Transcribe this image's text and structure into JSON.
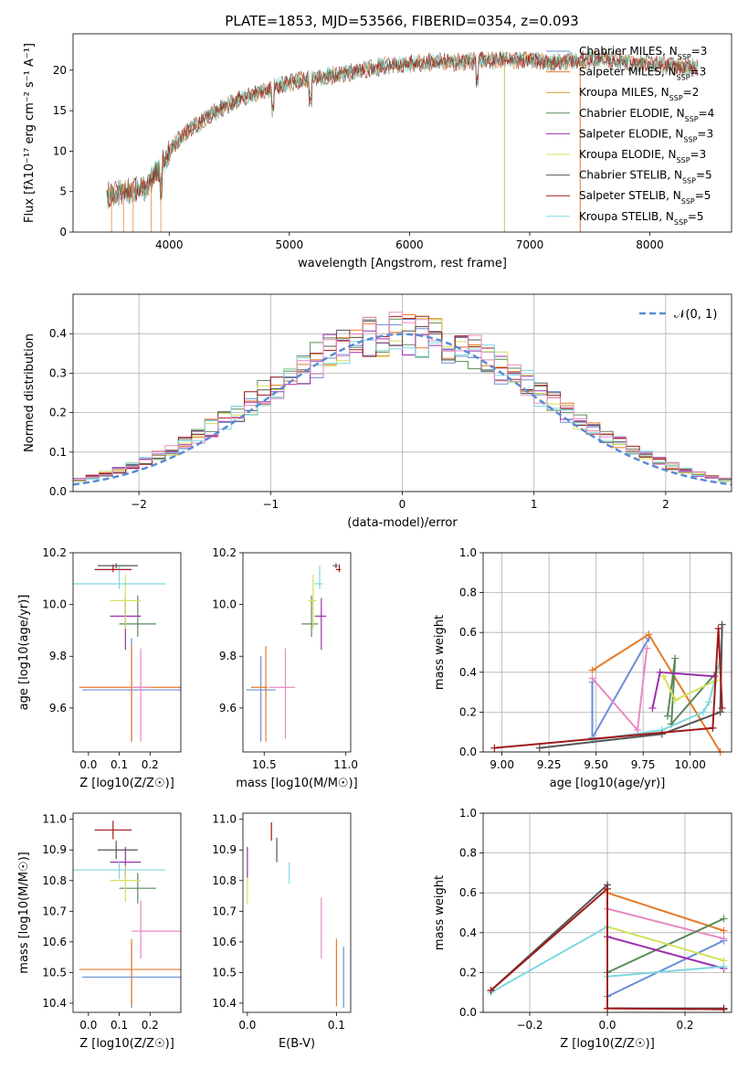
{
  "figure": {
    "title": "PLATE=1853, MJD=53566, FIBERID=0354, z=0.093",
    "model_colors": [
      "#6a8fd6",
      "#e57a2a",
      "#d99a2b",
      "#5a8a5a",
      "#9b2fae",
      "#d4e05a",
      "#555555",
      "#a01a1a",
      "#7fd8e0"
    ],
    "pink": "#e78ac3"
  },
  "chart_data": [
    {
      "id": "spectrum",
      "type": "line",
      "title": "PLATE=1853, MJD=53566, FIBERID=0354, z=0.093",
      "xlabel": "wavelength [Angstrom, rest frame]",
      "ylabel": "Flux [fλ10⁻¹⁷ erg cm⁻² s⁻¹ A⁻¹]",
      "xlim": [
        3200,
        8680
      ],
      "ylim": [
        0,
        24.5
      ],
      "xticks": [
        4000,
        5000,
        6000,
        7000,
        8000
      ],
      "yticks": [
        0,
        5,
        10,
        15,
        20
      ],
      "grid": false,
      "legend_position": "right",
      "legend": [
        "Chabrier MILES, N_SSP=3",
        "Salpeter MILES, N_SSP=3",
        "Kroupa MILES, N_SSP=2",
        "Chabrier ELODIE, N_SSP=4",
        "Salpeter ELODIE, N_SSP=3",
        "Kroupa ELODIE, N_SSP=3",
        "Chabrier STELIB, N_SSP=5",
        "Salpeter STELIB, N_SSP=5",
        "Kroupa STELIB, N_SSP=5"
      ],
      "continuum": {
        "x": [
          3480,
          3600,
          3800,
          3950,
          4050,
          4200,
          4400,
          4600,
          4800,
          5000,
          5200,
          5400,
          5600,
          5800,
          6000,
          6200,
          6400,
          6600,
          6800,
          7000,
          7200,
          7400,
          7600,
          7800,
          8000,
          8200,
          8400
        ],
        "y": [
          4.5,
          4.8,
          5.5,
          8.5,
          11.0,
          13.0,
          15.0,
          16.5,
          17.5,
          18.5,
          19.0,
          19.5,
          20.0,
          20.5,
          20.8,
          21.0,
          21.0,
          21.2,
          21.3,
          21.3,
          21.0,
          21.2,
          21.5,
          21.0,
          20.8,
          20.5,
          20.3
        ]
      },
      "spikes": [
        {
          "x": 6790,
          "ymin": 0,
          "ymax": 20.5
        },
        {
          "x": 7420,
          "ymin": 0,
          "ymax": 21.5
        }
      ]
    },
    {
      "id": "residuals",
      "type": "step",
      "xlabel": "(data-model)/error",
      "ylabel": "Normed distribution",
      "xlim": [
        -2.5,
        2.5
      ],
      "ylim": [
        0,
        0.5
      ],
      "xticks": [
        -2,
        -1,
        0,
        1,
        2
      ],
      "yticks": [
        0.0,
        0.1,
        0.2,
        0.3,
        0.4
      ],
      "grid": true,
      "legend": [
        "𝒩(0, 1)"
      ],
      "legend_position": "top-right",
      "bin_width": 0.1
    },
    {
      "id": "z-age",
      "type": "errorbar",
      "xlabel": "Z [log10(Z/Z☉)]",
      "ylabel": "age  [log10(age/yr)]",
      "xlim": [
        -0.05,
        0.3
      ],
      "ylim": [
        9.43,
        10.2
      ],
      "xticks": [
        0.0,
        0.1,
        0.2
      ],
      "yticks": [
        9.6,
        9.8,
        10.0,
        10.2
      ],
      "grid": false,
      "points": [
        {
          "x": 0.14,
          "y": 9.67,
          "xerr": [
            0.16,
            0.16
          ],
          "yerr": [
            0.2,
            0.2
          ],
          "c": 0
        },
        {
          "x": 0.14,
          "y": 9.68,
          "xerr": [
            0.17,
            0.16
          ],
          "yerr": [
            0.21,
            0.16
          ],
          "c": 1
        },
        {
          "x": 0.17,
          "y": 9.68,
          "xerr": [
            0.03,
            0.03
          ],
          "yerr": [
            0.21,
            0.15
          ],
          "c": "pink"
        },
        {
          "x": 0.16,
          "y": 9.925,
          "xerr": [
            0.06,
            0.06
          ],
          "yerr": [
            0.05,
            0.11
          ],
          "c": 3
        },
        {
          "x": 0.12,
          "y": 9.955,
          "xerr": [
            0.05,
            0.05
          ],
          "yerr": [
            0.13,
            0.07
          ],
          "c": 4
        },
        {
          "x": 0.12,
          "y": 10.015,
          "xerr": [
            0.05,
            0.05
          ],
          "yerr": [
            0.11,
            0.1
          ],
          "c": 5
        },
        {
          "x": 0.1,
          "y": 10.08,
          "xerr": [
            0.15,
            0.15
          ],
          "yerr": [
            0.02,
            0.07
          ],
          "c": 8
        },
        {
          "x": 0.08,
          "y": 10.135,
          "xerr": [
            0.06,
            0.06
          ],
          "yerr": [
            0.01,
            0.02
          ],
          "c": 7
        },
        {
          "x": 0.09,
          "y": 10.15,
          "xerr": [
            0.06,
            0.07
          ],
          "yerr": [
            0.01,
            0.01
          ],
          "c": 6
        }
      ]
    },
    {
      "id": "mass-age",
      "type": "errorbar",
      "xlabel": "mass [log10(M/M☉)]",
      "ylabel": "",
      "xlim": [
        10.37,
        11.03
      ],
      "ylim": [
        9.43,
        10.2
      ],
      "xticks": [
        10.5,
        11.0
      ],
      "yticks": [
        9.6,
        9.8,
        10.0,
        10.2
      ],
      "grid": false,
      "points": [
        {
          "x": 10.48,
          "y": 9.67,
          "xerr": [
            0.09,
            0.09
          ],
          "yerr": [
            0.2,
            0.13
          ],
          "c": 0
        },
        {
          "x": 10.51,
          "y": 9.68,
          "xerr": [
            0.09,
            0.01
          ],
          "yerr": [
            0.21,
            0.16
          ],
          "c": 1
        },
        {
          "x": 10.63,
          "y": 9.68,
          "xerr": [
            0.1,
            0.06
          ],
          "yerr": [
            0.2,
            0.15
          ],
          "c": "pink"
        },
        {
          "x": 10.79,
          "y": 9.925,
          "xerr": [
            0.06,
            0.04
          ],
          "yerr": [
            0.05,
            0.11
          ],
          "c": 3
        },
        {
          "x": 10.85,
          "y": 9.955,
          "xerr": [
            0.04,
            0.03
          ],
          "yerr": [
            0.13,
            0.07
          ],
          "c": 4
        },
        {
          "x": 10.8,
          "y": 10.015,
          "xerr": [
            0.03,
            0.02
          ],
          "yerr": [
            0.11,
            0.1
          ],
          "c": 5
        },
        {
          "x": 10.84,
          "y": 10.08,
          "xerr": [
            0.03,
            0.02
          ],
          "yerr": [
            0.02,
            0.07
          ],
          "c": 8
        },
        {
          "x": 10.96,
          "y": 10.135,
          "xerr": [
            0.02,
            0.01
          ],
          "yerr": [
            0.01,
            0.02
          ],
          "c": 7
        },
        {
          "x": 10.94,
          "y": 10.15,
          "xerr": [
            0.02,
            0.01
          ],
          "yerr": [
            0.01,
            0.01
          ],
          "c": 6
        }
      ]
    },
    {
      "id": "age-weight",
      "type": "line",
      "xlabel": "age  [log10(age/yr)]",
      "ylabel": "mass weight",
      "xlim": [
        8.9,
        10.22
      ],
      "ylim": [
        0,
        1.0
      ],
      "xticks": [
        9.0,
        9.25,
        9.5,
        9.75,
        10.0
      ],
      "xtick_labels": [
        "9.00",
        "9.25",
        "9.50",
        "9.75",
        "10.00"
      ],
      "yticks": [
        0.0,
        0.2,
        0.4,
        0.6,
        0.8,
        1.0
      ],
      "grid": true,
      "series": [
        {
          "c": 0,
          "x": [
            9.48,
            9.48,
            9.78,
            9.48
          ],
          "y": [
            0.35,
            0.07,
            0.57,
            0.07
          ]
        },
        {
          "c": 1,
          "x": [
            9.48,
            9.78,
            10.16
          ],
          "y": [
            0.41,
            0.59,
            0.0
          ]
        },
        {
          "c": "pink",
          "x": [
            9.48,
            9.72,
            9.77
          ],
          "y": [
            0.37,
            0.11,
            0.52
          ]
        },
        {
          "c": 3,
          "x": [
            9.88,
            9.92,
            9.9,
            10.14
          ],
          "y": [
            0.18,
            0.47,
            0.14,
            0.4
          ]
        },
        {
          "c": 4,
          "x": [
            9.8,
            9.84,
            10.13
          ],
          "y": [
            0.22,
            0.4,
            0.38
          ]
        },
        {
          "c": 5,
          "x": [
            9.86,
            9.92,
            10.14
          ],
          "y": [
            0.38,
            0.26,
            0.36
          ]
        },
        {
          "c": 8,
          "x": [
            9.48,
            9.85,
            10.07,
            10.1,
            10.15
          ],
          "y": [
            0.06,
            0.11,
            0.2,
            0.25,
            0.43
          ]
        },
        {
          "c": 6,
          "x": [
            9.2,
            9.85,
            10.16,
            10.17
          ],
          "y": [
            0.02,
            0.09,
            0.2,
            0.64
          ]
        },
        {
          "c": 7,
          "x": [
            8.96,
            10.12,
            10.15,
            10.17
          ],
          "y": [
            0.02,
            0.12,
            0.62,
            0.22
          ]
        }
      ]
    },
    {
      "id": "z-mass",
      "type": "errorbar",
      "xlabel": "Z [log10(Z/Z☉)]",
      "ylabel": "mass [log10(M/M☉)]",
      "xlim": [
        -0.05,
        0.3
      ],
      "ylim": [
        10.37,
        11.02
      ],
      "xticks": [
        0.0,
        0.1,
        0.2
      ],
      "yticks": [
        10.4,
        10.5,
        10.6,
        10.7,
        10.8,
        10.9,
        11.0
      ],
      "grid": false,
      "points": [
        {
          "x": 0.14,
          "y": 10.485,
          "xerr": [
            0.16,
            0.16
          ],
          "yerr": [
            0.1,
            0.1
          ],
          "c": 0
        },
        {
          "x": 0.14,
          "y": 10.51,
          "xerr": [
            0.17,
            0.16
          ],
          "yerr": [
            0.12,
            0.1
          ],
          "c": 1
        },
        {
          "x": 0.17,
          "y": 10.635,
          "xerr": [
            0.03,
            0.13
          ],
          "yerr": [
            0.09,
            0.1
          ],
          "c": "pink"
        },
        {
          "x": 0.16,
          "y": 10.775,
          "xerr": [
            0.06,
            0.06
          ],
          "yerr": [
            0.05,
            0.05
          ],
          "c": 3
        },
        {
          "x": 0.12,
          "y": 10.86,
          "xerr": [
            0.05,
            0.05
          ],
          "yerr": [
            0.05,
            0.05
          ],
          "c": 4
        },
        {
          "x": 0.12,
          "y": 10.8,
          "xerr": [
            0.05,
            0.05
          ],
          "yerr": [
            0.07,
            0.05
          ],
          "c": 5
        },
        {
          "x": 0.1,
          "y": 10.835,
          "xerr": [
            0.15,
            0.15
          ],
          "yerr": [
            0.03,
            0.03
          ],
          "c": 8
        },
        {
          "x": 0.08,
          "y": 10.965,
          "xerr": [
            0.06,
            0.06
          ],
          "yerr": [
            0.03,
            0.03
          ],
          "c": 7
        },
        {
          "x": 0.09,
          "y": 10.9,
          "xerr": [
            0.06,
            0.07
          ],
          "yerr": [
            0.03,
            0.03
          ],
          "c": 6
        }
      ]
    },
    {
      "id": "ebv-mass",
      "type": "errorbar",
      "xlabel": "E(B-V)",
      "ylabel": "",
      "xlim": [
        -0.005,
        0.116
      ],
      "ylim": [
        10.37,
        11.02
      ],
      "xticks": [
        0.0,
        0.1
      ],
      "yticks": [
        10.4,
        10.5,
        10.6,
        10.7,
        10.8,
        10.9,
        11.0
      ],
      "grid": false,
      "points": [
        {
          "x": 0.108,
          "y": 10.485,
          "xerr": [
            0,
            0
          ],
          "yerr": [
            0.1,
            0.1
          ],
          "c": 0
        },
        {
          "x": 0.1,
          "y": 10.51,
          "xerr": [
            0,
            0
          ],
          "yerr": [
            0.12,
            0.1
          ],
          "c": 1
        },
        {
          "x": 0.083,
          "y": 10.645,
          "xerr": [
            0,
            0
          ],
          "yerr": [
            0.1,
            0.1
          ],
          "c": "pink"
        },
        {
          "x": 0.0,
          "y": 10.775,
          "xerr": [
            0,
            0
          ],
          "yerr": [
            0.05,
            0.05
          ],
          "c": 5
        },
        {
          "x": 0.0,
          "y": 10.86,
          "xerr": [
            0,
            0
          ],
          "yerr": [
            0.05,
            0.05
          ],
          "c": 4
        },
        {
          "x": 0.047,
          "y": 10.83,
          "xerr": [
            0,
            0
          ],
          "yerr": [
            0.04,
            0.03
          ],
          "c": 8
        },
        {
          "x": 0.027,
          "y": 10.96,
          "xerr": [
            0,
            0
          ],
          "yerr": [
            0.03,
            0.03
          ],
          "c": 7
        },
        {
          "x": 0.033,
          "y": 10.9,
          "xerr": [
            0,
            0
          ],
          "yerr": [
            0.04,
            0.04
          ],
          "c": 6
        }
      ]
    },
    {
      "id": "z-weight",
      "type": "line",
      "xlabel": "Z [log10(Z/Z☉)]",
      "ylabel": "mass weight",
      "xlim": [
        -0.32,
        0.32
      ],
      "ylim": [
        0,
        1.0
      ],
      "xticks": [
        -0.2,
        0.0,
        0.2
      ],
      "xtick_labels": [
        "−0.2",
        "0.0",
        "0.2"
      ],
      "yticks": [
        0.0,
        0.2,
        0.4,
        0.6,
        0.8,
        1.0
      ],
      "grid": true,
      "series": [
        {
          "c": 0,
          "x": [
            0.0,
            0.3
          ],
          "y": [
            0.08,
            0.36
          ]
        },
        {
          "c": 1,
          "x": [
            0.0,
            0.3
          ],
          "y": [
            0.6,
            0.41
          ]
        },
        {
          "c": "pink",
          "x": [
            0.0,
            0.3
          ],
          "y": [
            0.52,
            0.37
          ]
        },
        {
          "c": 3,
          "x": [
            0.0,
            0.3
          ],
          "y": [
            0.2,
            0.47
          ]
        },
        {
          "c": 4,
          "x": [
            0.0,
            0.3
          ],
          "y": [
            0.38,
            0.22
          ]
        },
        {
          "c": 5,
          "x": [
            0.0,
            0.3
          ],
          "y": [
            0.43,
            0.26
          ]
        },
        {
          "c": 8,
          "x": [
            -0.3,
            0.0,
            0.0,
            0.3
          ],
          "y": [
            0.1,
            0.43,
            0.18,
            0.23
          ]
        },
        {
          "c": 6,
          "x": [
            -0.3,
            0.0,
            0.0,
            0.3
          ],
          "y": [
            0.11,
            0.64,
            0.02,
            0.02
          ]
        },
        {
          "c": 7,
          "x": [
            -0.3,
            0.0,
            0.0,
            0.3
          ],
          "y": [
            0.11,
            0.62,
            0.02,
            0.015
          ]
        }
      ]
    }
  ]
}
